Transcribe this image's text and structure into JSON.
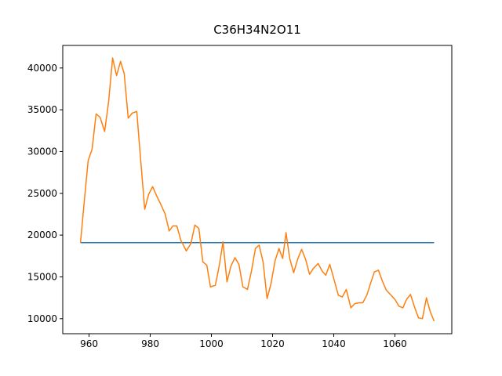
{
  "chart_data": {
    "type": "line",
    "title": "C36H34N2O11",
    "series": [
      {
        "color": "#1f77b4",
        "x": [
          957.2,
          1072.8
        ],
        "values": [
          19100,
          19100
        ]
      },
      {
        "color": "#ff7f0e",
        "x": [
          957.2,
          958.5,
          959.7,
          961.0,
          962.3,
          963.6,
          965.1,
          966.4,
          967.7,
          969.0,
          970.3,
          971.5,
          972.8,
          974.1,
          975.6,
          976.9,
          978.2,
          979.5,
          980.8,
          982.1,
          983.3,
          984.9,
          986.2,
          987.4,
          988.7,
          990.0,
          991.8,
          993.3,
          994.6,
          995.9,
          997.2,
          998.5,
          999.7,
          1001.3,
          1002.6,
          1003.8,
          1005.1,
          1006.4,
          1007.7,
          1009.0,
          1010.3,
          1011.8,
          1013.1,
          1014.4,
          1015.6,
          1016.9,
          1018.2,
          1019.5,
          1020.8,
          1022.1,
          1023.3,
          1024.4,
          1025.6,
          1026.9,
          1028.2,
          1029.5,
          1030.8,
          1032.1,
          1033.3,
          1034.9,
          1036.2,
          1037.4,
          1038.7,
          1040.0,
          1041.5,
          1042.8,
          1044.1,
          1045.6,
          1046.9,
          1048.2,
          1049.5,
          1050.8,
          1052.1,
          1053.3,
          1054.6,
          1055.9,
          1057.2,
          1058.5,
          1060.0,
          1061.3,
          1062.6,
          1063.8,
          1065.1,
          1066.4,
          1067.7,
          1069.0,
          1070.3,
          1071.5,
          1072.8
        ],
        "values": [
          19100,
          24300,
          28900,
          30300,
          34500,
          34100,
          32400,
          36000,
          41200,
          39100,
          40800,
          39300,
          34000,
          34600,
          34800,
          28900,
          23100,
          24900,
          25800,
          24700,
          23800,
          22500,
          20500,
          21100,
          21100,
          19400,
          18100,
          19000,
          21200,
          20800,
          16800,
          16400,
          13800,
          14000,
          16400,
          19200,
          14400,
          16300,
          17300,
          16500,
          13800,
          13500,
          15700,
          18400,
          18800,
          16800,
          12400,
          14200,
          16900,
          18400,
          17200,
          20300,
          17200,
          15500,
          17100,
          18300,
          17100,
          15300,
          16000,
          16600,
          15700,
          15200,
          16500,
          14800,
          12800,
          12600,
          13500,
          11300,
          11800,
          11900,
          11900,
          12800,
          14300,
          15600,
          15800,
          14500,
          13400,
          12900,
          12300,
          11500,
          11300,
          12300,
          12900,
          11400,
          10100,
          10000,
          12500,
          10900,
          9700
        ]
      }
    ],
    "xlim": [
      951.4,
      1078.6
    ],
    "ylim": [
      8200,
      42700
    ],
    "xticks": [
      960,
      980,
      1000,
      1020,
      1040,
      1060
    ],
    "yticks": [
      10000,
      15000,
      20000,
      25000,
      30000,
      35000,
      40000
    ]
  }
}
